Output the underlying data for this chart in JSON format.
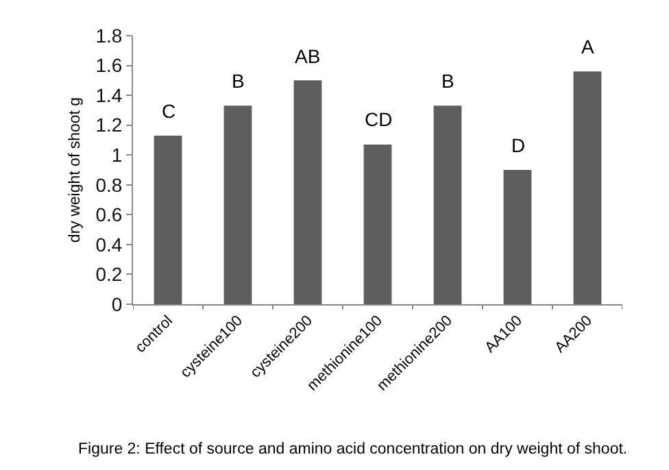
{
  "chart_data": {
    "type": "bar",
    "ylabel": "dry weight of shoot g",
    "categories": [
      "control",
      "cysteine100",
      "cysteine200",
      "methionine100",
      "methionine200",
      "AA100",
      "AA200"
    ],
    "values": [
      1.13,
      1.33,
      1.5,
      1.07,
      1.33,
      0.9,
      1.56
    ],
    "color": "#5f5e5e",
    "ylim": [
      0,
      1.8
    ],
    "yticks": [
      0,
      0.2,
      0.4,
      0.6,
      0.8,
      1,
      1.2,
      1.4,
      1.6,
      1.8
    ],
    "grid": false,
    "annotations": [
      {
        "text": "C",
        "x": "control",
        "y": 1.13
      },
      {
        "text": "B",
        "x": "cysteine100",
        "y": 1.33
      },
      {
        "text": "AB",
        "x": "cysteine200",
        "y": 1.5
      },
      {
        "text": "CD",
        "x": "methionine100",
        "y": 1.07
      },
      {
        "text": "B",
        "x": "methionine200",
        "y": 1.33
      },
      {
        "text": "D",
        "x": "AA100",
        "y": 0.9
      },
      {
        "text": "A",
        "x": "AA200",
        "y": 1.56
      },
      "Figure 2: Effect of source and amino acid concentration on dry weight of shoot."
    ]
  }
}
